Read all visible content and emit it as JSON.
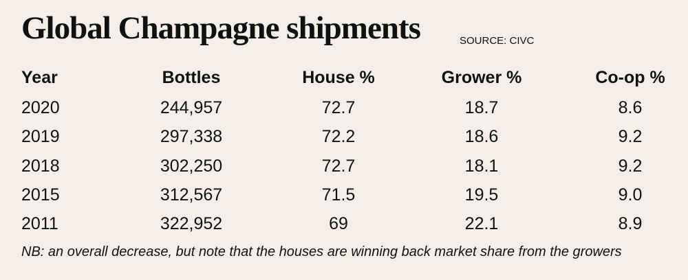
{
  "header": {
    "title": "Global Champagne shipments",
    "source": "SOURCE: CIVC"
  },
  "table": {
    "columns": [
      "Year",
      "Bottles",
      "House %",
      "Grower %",
      "Co-op %"
    ],
    "rows": [
      [
        "2020",
        "244,957",
        "72.7",
        "18.7",
        "8.6"
      ],
      [
        "2019",
        "297,338",
        "72.2",
        "18.6",
        "9.2"
      ],
      [
        "2018",
        "302,250",
        "72.7",
        "18.1",
        "9.2"
      ],
      [
        "2015",
        "312,567",
        "71.5",
        "19.5",
        "9.0"
      ],
      [
        "2011",
        "322,952",
        "69",
        "22.1",
        "8.9"
      ]
    ]
  },
  "note": "NB: an overall decrease, but note that the houses are winning back market share from the growers"
}
